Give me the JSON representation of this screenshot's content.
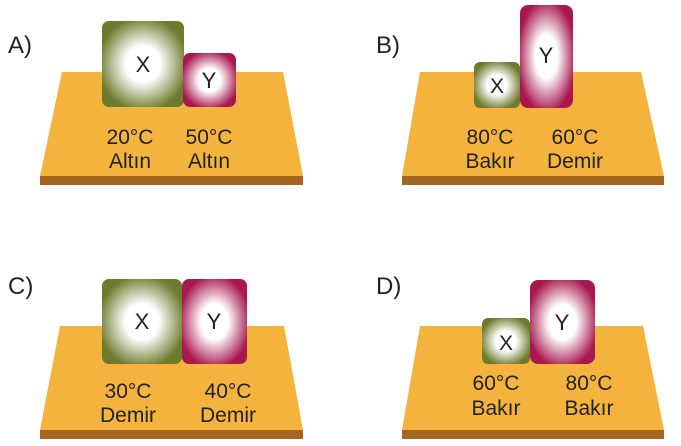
{
  "colors": {
    "table_top": "#F3B33D",
    "table_edge": "#A4661E",
    "block_x": "#6E7A2C",
    "block_y": "#A8184E",
    "text": "#222222"
  },
  "panels": [
    {
      "option": "A)",
      "blocks": [
        {
          "name": "X",
          "temp": "20°C",
          "material": "Altın"
        },
        {
          "name": "Y",
          "temp": "50°C",
          "material": "Altın"
        }
      ]
    },
    {
      "option": "B)",
      "blocks": [
        {
          "name": "X",
          "temp": "80°C",
          "material": "Bakır"
        },
        {
          "name": "Y",
          "temp": "60°C",
          "material": "Demir"
        }
      ]
    },
    {
      "option": "C)",
      "blocks": [
        {
          "name": "X",
          "temp": "30°C",
          "material": "Demir"
        },
        {
          "name": "Y",
          "temp": "40°C",
          "material": "Demir"
        }
      ]
    },
    {
      "option": "D)",
      "blocks": [
        {
          "name": "X",
          "temp": "60°C",
          "material": "Bakır"
        },
        {
          "name": "Y",
          "temp": "80°C",
          "material": "Bakır"
        }
      ]
    }
  ]
}
